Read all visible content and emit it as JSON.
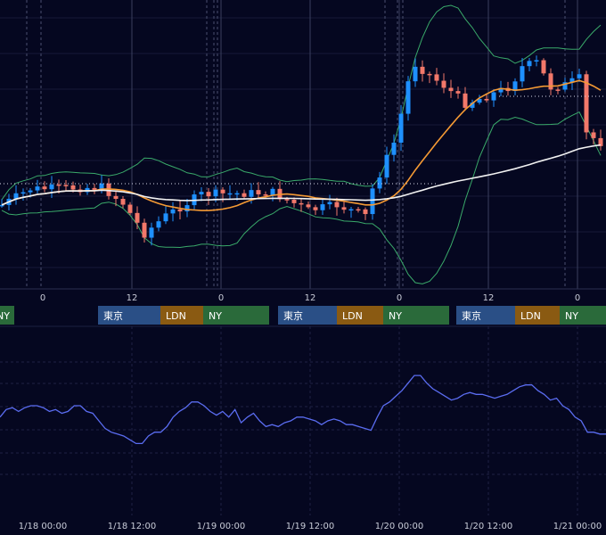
{
  "chart_data": [
    {
      "type": "candlestick",
      "panel": "price",
      "bollinger_bands": true,
      "moving_averages": [
        {
          "color": "#f59a34"
        },
        {
          "color": "#f2f2f2"
        }
      ],
      "x_ticks": [
        "0",
        "12",
        "0",
        "12",
        "0",
        "12",
        "0"
      ],
      "sessions": [
        {
          "label": "NY",
          "color": "#2a6a3a"
        },
        {
          "label": "東京",
          "color": "#2a4f86"
        },
        {
          "label": "LDN",
          "color": "#8a5a12"
        },
        {
          "label": "NY",
          "color": "#2a6a3a"
        },
        {
          "label": "東京",
          "color": "#2a4f86"
        },
        {
          "label": "LDN",
          "color": "#8a5a12"
        },
        {
          "label": "NY",
          "color": "#2a6a3a"
        },
        {
          "label": "東京",
          "color": "#2a4f86"
        },
        {
          "label": "LDN",
          "color": "#8a5a12"
        },
        {
          "label": "NY",
          "color": "#2a6a3a"
        }
      ],
      "colors": {
        "up": "#1e90ff",
        "down": "#f2786a",
        "band": "#3aaa6a"
      }
    },
    {
      "type": "line",
      "panel": "oscillator",
      "series_color": "#5a6cf0",
      "x_labels": [
        "1/18 00:00",
        "1/18 12:00",
        "1/19 00:00",
        "1/19 12:00",
        "1/20 00:00",
        "1/20 12:00",
        "1/21 00:00"
      ],
      "values": [
        52,
        56,
        57,
        55,
        57,
        58,
        58,
        57,
        55,
        56,
        54,
        55,
        58,
        58,
        55,
        54,
        50,
        46,
        44,
        43,
        42,
        40,
        38,
        38,
        42,
        44,
        44,
        47,
        52,
        55,
        57,
        60,
        60,
        58,
        55,
        53,
        55,
        52,
        56,
        49,
        52,
        54,
        50,
        47,
        48,
        47,
        49,
        50,
        52,
        52,
        51,
        50,
        48,
        50,
        51,
        50,
        48,
        48,
        47,
        46,
        45,
        52,
        58,
        60,
        63,
        66,
        70,
        74,
        74,
        70,
        67,
        65,
        63,
        61,
        62,
        64,
        65,
        64,
        64,
        63,
        62,
        63,
        64,
        66,
        68,
        69,
        69,
        66,
        64,
        61,
        62,
        58,
        56,
        52,
        50,
        44,
        44,
        43,
        43
      ]
    }
  ]
}
